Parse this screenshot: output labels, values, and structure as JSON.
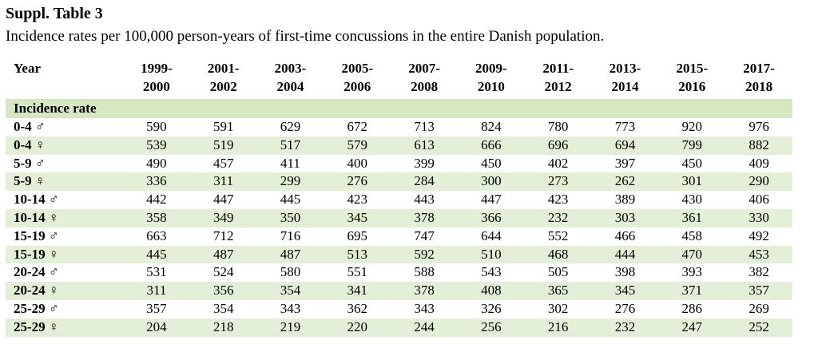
{
  "title": "Suppl. Table 3",
  "subtitle": "Incidence rates per 100,000 person-years of first-time concussions in the entire Danish population.",
  "table": {
    "year_header": "Year",
    "periods": [
      [
        "1999-",
        "2000"
      ],
      [
        "2001-",
        "2002"
      ],
      [
        "2003-",
        "2004"
      ],
      [
        "2005-",
        "2006"
      ],
      [
        "2007-",
        "2008"
      ],
      [
        "2009-",
        "2010"
      ],
      [
        "2011-",
        "2012"
      ],
      [
        "2013-",
        "2014"
      ],
      [
        "2015-",
        "2016"
      ],
      [
        "2017-",
        "2018"
      ]
    ],
    "section_label": "Incidence rate",
    "rows": [
      {
        "age": "0-4",
        "sex": "♂",
        "values": [
          "590",
          "591",
          "629",
          "672",
          "713",
          "824",
          "780",
          "773",
          "920",
          "976"
        ]
      },
      {
        "age": "0-4",
        "sex": "♀",
        "values": [
          "539",
          "519",
          "517",
          "579",
          "613",
          "666",
          "696",
          "694",
          "799",
          "882"
        ]
      },
      {
        "age": "5-9",
        "sex": "♂",
        "values": [
          "490",
          "457",
          "411",
          "400",
          "399",
          "450",
          "402",
          "397",
          "450",
          "409"
        ]
      },
      {
        "age": "5-9",
        "sex": "♀",
        "values": [
          "336",
          "311",
          "299",
          "276",
          "284",
          "300",
          "273",
          "262",
          "301",
          "290"
        ]
      },
      {
        "age": "10-14",
        "sex": "♂",
        "values": [
          "442",
          "447",
          "445",
          "423",
          "443",
          "447",
          "423",
          "389",
          "430",
          "406"
        ]
      },
      {
        "age": "10-14",
        "sex": "♀",
        "values": [
          "358",
          "349",
          "350",
          "345",
          "378",
          "366",
          "232",
          "303",
          "361",
          "330"
        ]
      },
      {
        "age": "15-19",
        "sex": "♂",
        "values": [
          "663",
          "712",
          "716",
          "695",
          "747",
          "644",
          "552",
          "466",
          "458",
          "492"
        ]
      },
      {
        "age": "15-19",
        "sex": "♀",
        "values": [
          "445",
          "487",
          "487",
          "513",
          "592",
          "510",
          "468",
          "444",
          "470",
          "453"
        ]
      },
      {
        "age": "20-24",
        "sex": "♂",
        "values": [
          "531",
          "524",
          "580",
          "551",
          "588",
          "543",
          "505",
          "398",
          "393",
          "382"
        ]
      },
      {
        "age": "20-24",
        "sex": "♀",
        "values": [
          "311",
          "356",
          "354",
          "341",
          "378",
          "408",
          "365",
          "345",
          "371",
          "357"
        ]
      },
      {
        "age": "25-29",
        "sex": "♂",
        "values": [
          "357",
          "354",
          "343",
          "362",
          "343",
          "326",
          "302",
          "276",
          "286",
          "269"
        ]
      },
      {
        "age": "25-29",
        "sex": "♀",
        "values": [
          "204",
          "218",
          "219",
          "220",
          "244",
          "256",
          "216",
          "232",
          "247",
          "252"
        ]
      }
    ]
  },
  "colors": {
    "band": "#e3efd6",
    "section": "#d6e8c2"
  }
}
